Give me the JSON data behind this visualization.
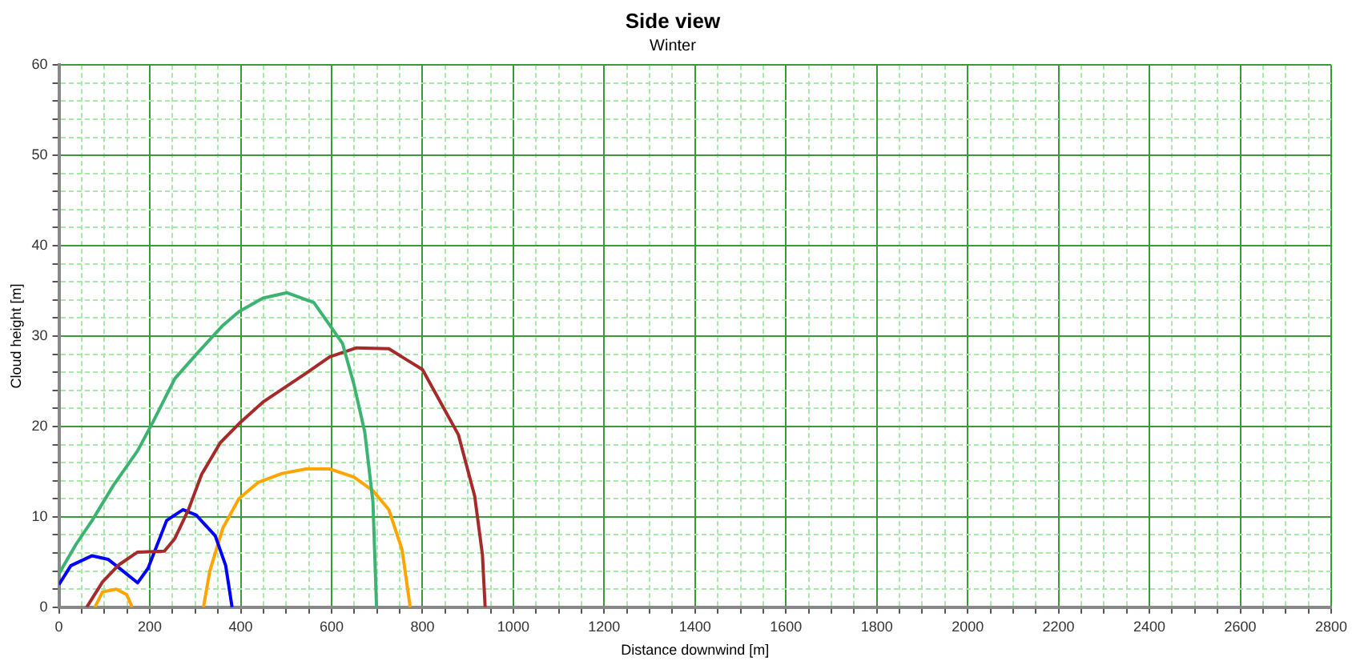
{
  "chart_data": {
    "type": "line",
    "title": "Side view",
    "subtitle": "Winter",
    "xlabel": "Distance downwind [m]",
    "ylabel": "Cloud height [m]",
    "xlim": [
      0,
      2800
    ],
    "xticks": [
      0,
      {
        "value": 50,
        "label": null
      },
      {
        "value": 100,
        "label": null
      },
      {
        "value": 150,
        "label": null
      },
      200,
      {
        "value": 250,
        "label": null
      },
      {
        "value": 300,
        "label": null
      },
      {
        "value": 350,
        "label": null
      },
      400,
      {
        "value": 450,
        "label": null
      },
      {
        "value": 500,
        "label": null
      },
      {
        "value": 550,
        "label": null
      },
      600,
      {
        "value": 650,
        "label": null
      },
      {
        "value": 700,
        "label": null
      },
      {
        "value": 750,
        "label": null
      },
      800,
      {
        "value": 850,
        "label": null
      },
      {
        "value": 900,
        "label": null
      },
      {
        "value": 950,
        "label": null
      },
      1000,
      {
        "value": 1050,
        "label": null
      },
      {
        "value": 1100,
        "label": null
      },
      {
        "value": 1150,
        "label": null
      },
      1200,
      {
        "value": 1250,
        "label": null
      },
      {
        "value": 1300,
        "label": null
      },
      {
        "value": 1350,
        "label": null
      },
      1400,
      {
        "value": 1450,
        "label": null
      },
      {
        "value": 1500,
        "label": null
      },
      {
        "value": 1550,
        "label": null
      },
      1600,
      {
        "value": 1650,
        "label": null
      },
      {
        "value": 1700,
        "label": null
      },
      {
        "value": 1750,
        "label": null
      },
      1800,
      {
        "value": 1850,
        "label": null
      },
      {
        "value": 1900,
        "label": null
      },
      {
        "value": 1950,
        "label": null
      },
      2000,
      {
        "value": 2050,
        "label": null
      },
      {
        "value": 2100,
        "label": null
      },
      {
        "value": 2150,
        "label": null
      },
      2200,
      {
        "value": 2250,
        "label": null
      },
      {
        "value": 2300,
        "label": null
      },
      {
        "value": 2350,
        "label": null
      },
      2400,
      {
        "value": 2450,
        "label": null
      },
      {
        "value": 2500,
        "label": null
      },
      {
        "value": 2550,
        "label": null
      },
      2600,
      {
        "value": 2650,
        "label": null
      },
      {
        "value": 2700,
        "label": null
      },
      {
        "value": 2750,
        "label": null
      },
      2800
    ],
    "ylim": [
      0,
      60
    ],
    "yticks": [
      0,
      {
        "value": 2,
        "label": null
      },
      {
        "value": 4,
        "label": null
      },
      {
        "value": 6,
        "label": null
      },
      {
        "value": 8,
        "label": null
      },
      10,
      {
        "value": 12,
        "label": null
      },
      {
        "value": 14,
        "label": null
      },
      {
        "value": 16,
        "label": null
      },
      {
        "value": 18,
        "label": null
      },
      20,
      {
        "value": 22,
        "label": null
      },
      {
        "value": 24,
        "label": null
      },
      {
        "value": 26,
        "label": null
      },
      {
        "value": 28,
        "label": null
      },
      30,
      {
        "value": 32,
        "label": null
      },
      {
        "value": 34,
        "label": null
      },
      {
        "value": 36,
        "label": null
      },
      {
        "value": 38,
        "label": null
      },
      40,
      {
        "value": 42,
        "label": null
      },
      {
        "value": 44,
        "label": null
      },
      {
        "value": 46,
        "label": null
      },
      {
        "value": 48,
        "label": null
      },
      50,
      {
        "value": 52,
        "label": null
      },
      {
        "value": 54,
        "label": null
      },
      {
        "value": 56,
        "label": null
      },
      {
        "value": 58,
        "label": null
      },
      60
    ],
    "grid": true,
    "legend": false,
    "marker": "none",
    "line_style": "solid",
    "series": [
      {
        "color": "#3cb371",
        "x": [
          0,
          38,
          73,
          120,
          173,
          208,
          255,
          308,
          361,
          396,
          449,
          502,
          561,
          596,
          624,
          649,
          673,
          691,
          699
        ],
        "values": [
          3.7,
          7,
          9.6,
          13.5,
          17.3,
          20.6,
          25.3,
          28.3,
          31.2,
          32.7,
          34.2,
          34.8,
          33.7,
          31.2,
          29.2,
          24.7,
          19.4,
          11.7,
          0
        ]
      },
      {
        "color": "#a52a2a",
        "x": [
          61,
          96,
          132,
          173,
          232,
          255,
          285,
          314,
          355,
          396,
          449,
          544,
          596,
          655,
          726,
          800,
          879,
          915,
          932,
          938
        ],
        "values": [
          0,
          2.8,
          4.7,
          6.1,
          6.2,
          7.6,
          10.8,
          14.7,
          18.2,
          20.3,
          22.7,
          25.9,
          27.7,
          28.7,
          28.6,
          26.3,
          19.1,
          12.3,
          5.8,
          0
        ]
      },
      {
        "color": "#0000ff",
        "x": [
          0,
          26,
          73,
          108,
          141,
          173,
          196,
          237,
          273,
          302,
          344,
          367,
          381
        ],
        "values": [
          2.5,
          4.6,
          5.7,
          5.3,
          4,
          2.7,
          4.3,
          9.6,
          10.8,
          10.2,
          7.9,
          4.6,
          0
        ]
      },
      {
        "color": "#ffa500",
        "x": [
          79,
          96,
          126,
          149,
          161
        ],
        "values": [
          0,
          1.7,
          2,
          1.4,
          0
        ]
      },
      {
        "color": "#ffa500",
        "x": [
          318,
          332,
          361,
          396,
          438,
          491,
          544,
          596,
          649,
          691,
          726,
          755,
          773
        ],
        "values": [
          0,
          4,
          8.8,
          12,
          13.8,
          14.8,
          15.3,
          15.3,
          14.4,
          12.9,
          10.8,
          6.4,
          0
        ]
      }
    ]
  }
}
